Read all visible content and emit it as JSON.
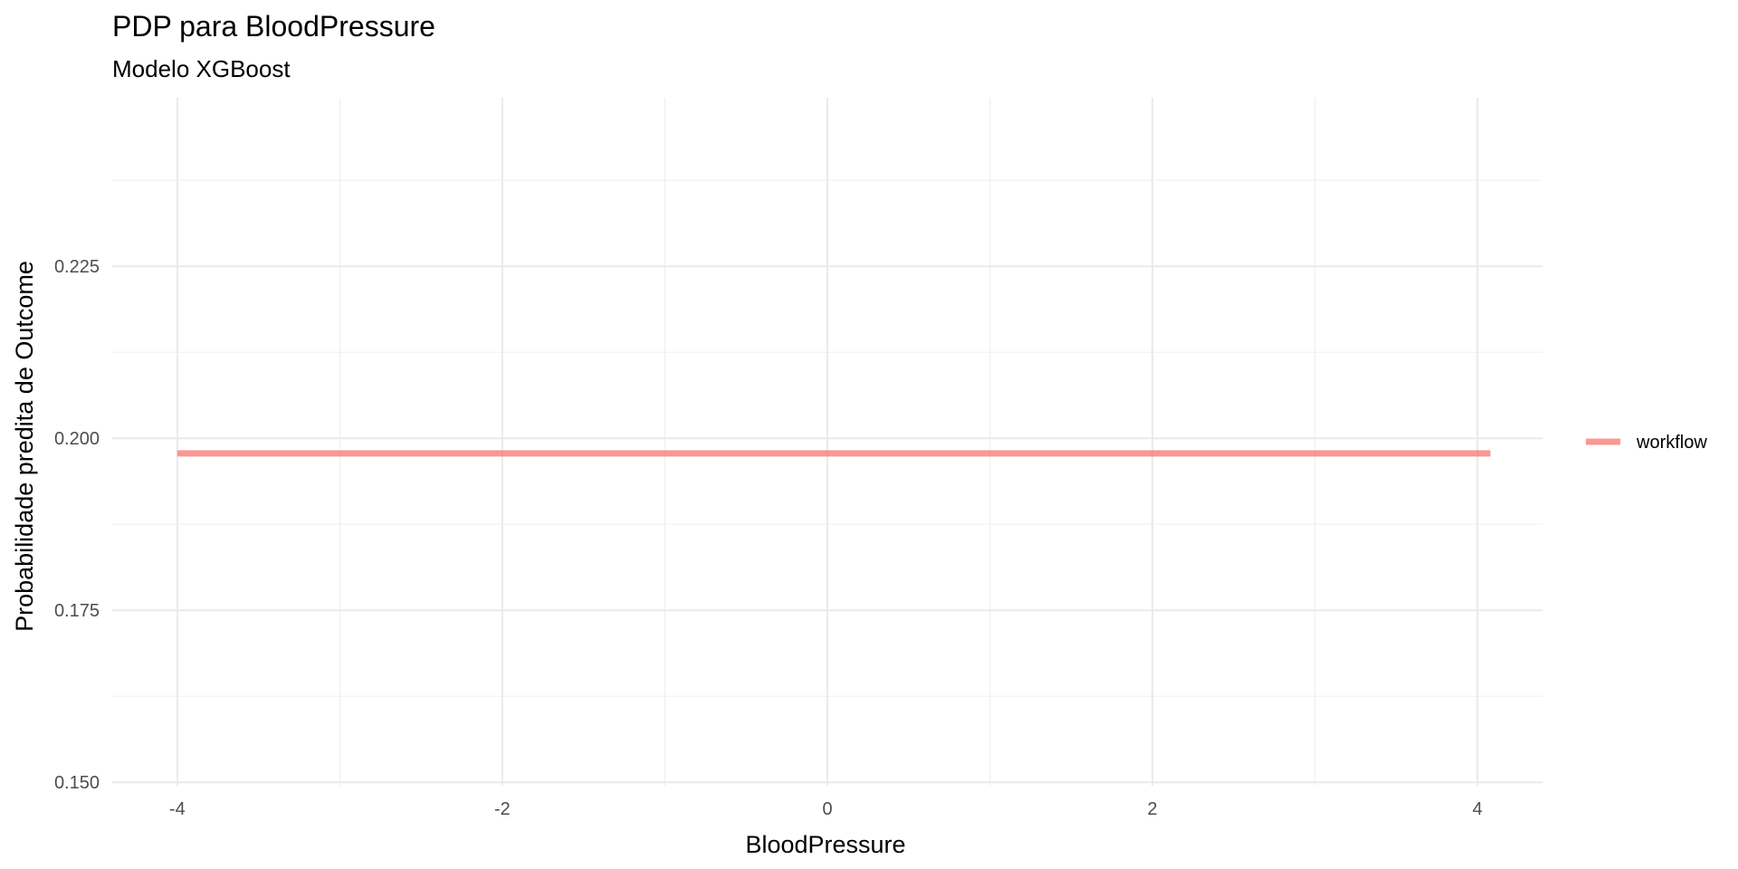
{
  "chart_data": {
    "type": "line",
    "title": "PDP para BloodPressure",
    "subtitle": "Modelo XGBoost",
    "xlabel": "BloodPressure",
    "ylabel": "Probabilidade predita de Outcome",
    "xlim": [
      -4.4,
      4.4
    ],
    "ylim": [
      0.1495,
      0.2495
    ],
    "x_ticks": [
      -4,
      -2,
      0,
      2,
      4
    ],
    "x_tick_labels": [
      "-4",
      "-2",
      "0",
      "2",
      "4"
    ],
    "y_ticks": [
      0.15,
      0.175,
      0.2,
      0.225
    ],
    "y_tick_labels": [
      "0.150",
      "0.175",
      "0.200",
      "0.225"
    ],
    "grid": true,
    "legend_position": "right",
    "series": [
      {
        "name": "workflow",
        "color": "#F8766D",
        "x": [
          -4,
          -3,
          -2,
          -1,
          0,
          1,
          2,
          3,
          4.08
        ],
        "y": [
          0.1978,
          0.1978,
          0.1978,
          0.1978,
          0.1978,
          0.1978,
          0.1978,
          0.1978,
          0.1978
        ]
      }
    ]
  }
}
